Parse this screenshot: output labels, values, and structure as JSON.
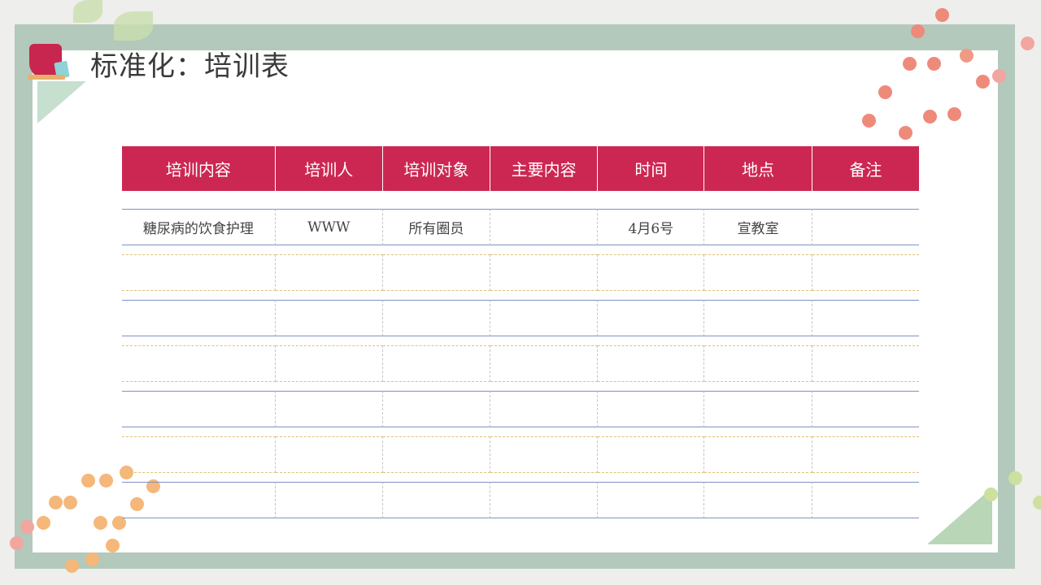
{
  "title": "标准化：培训表",
  "table": {
    "headers": [
      "培训内容",
      "培训人",
      "培训对象",
      "主要内容",
      "时间",
      "地点",
      "备注"
    ],
    "rows": [
      [
        "糖尿病的饮食护理",
        "WWW",
        "所有圈员",
        "",
        "4月6号",
        "宣教室",
        ""
      ],
      [
        "",
        "",
        "",
        "",
        "",
        "",
        ""
      ],
      [
        "",
        "",
        "",
        "",
        "",
        "",
        ""
      ],
      [
        "",
        "",
        "",
        "",
        "",
        "",
        ""
      ],
      [
        "",
        "",
        "",
        "",
        "",
        "",
        ""
      ],
      [
        "",
        "",
        "",
        "",
        "",
        "",
        ""
      ],
      [
        "",
        "",
        "",
        "",
        "",
        "",
        ""
      ]
    ]
  },
  "colors": {
    "header": "#cc2752",
    "frame": "#b3c9bb"
  }
}
